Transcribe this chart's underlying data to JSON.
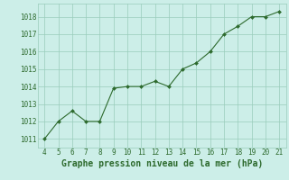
{
  "x": [
    4,
    5,
    6,
    7,
    8,
    9,
    10,
    11,
    12,
    13,
    14,
    15,
    16,
    17,
    18,
    19,
    20,
    21
  ],
  "y": [
    1011,
    1012,
    1012.6,
    1012,
    1012,
    1013.9,
    1014,
    1014,
    1014.3,
    1014,
    1015,
    1015.35,
    1016,
    1017,
    1017.45,
    1018,
    1018,
    1018.3
  ],
  "line_color": "#2d6a2d",
  "marker_color": "#2d6a2d",
  "bg_color": "#cceee8",
  "grid_color": "#99ccbb",
  "xlabel": "Graphe pression niveau de la mer (hPa)",
  "xlim": [
    3.5,
    21.5
  ],
  "ylim": [
    1010.5,
    1018.75
  ],
  "yticks": [
    1011,
    1012,
    1013,
    1014,
    1015,
    1016,
    1017,
    1018
  ],
  "xticks": [
    4,
    5,
    6,
    7,
    8,
    9,
    10,
    11,
    12,
    13,
    14,
    15,
    16,
    17,
    18,
    19,
    20,
    21
  ],
  "tick_color": "#2d6a2d",
  "tick_fontsize": 5.5,
  "xlabel_fontsize": 7,
  "xlabel_color": "#2d6a2d"
}
